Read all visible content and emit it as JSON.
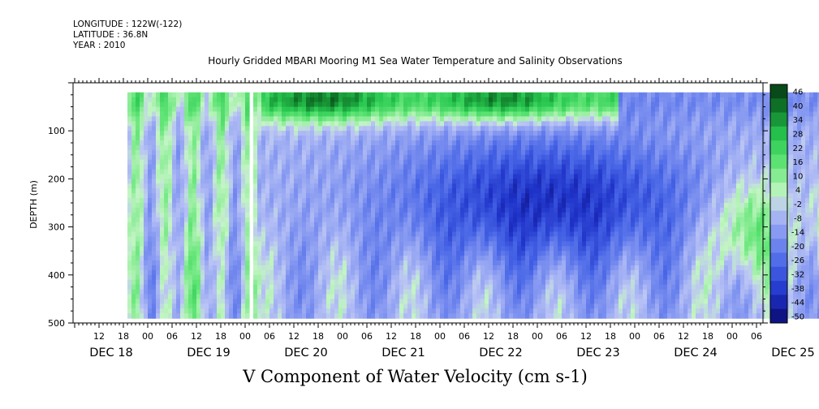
{
  "header": {
    "longitude": "LONGITUDE : 122W(-122)",
    "latitude": "LATITUDE : 36.8N",
    "year": "YEAR : 2010"
  },
  "chart_data": {
    "type": "heatmap",
    "title": "Hourly Gridded MBARI Mooring M1 Sea Water Temperature and Salinity Observations",
    "variable_label": "V Component of Water Velocity (cm s-1)",
    "ylabel": "DEPTH (m)",
    "y_axis": {
      "ylim": [
        500,
        0
      ],
      "inverted": true,
      "ticks": [
        100,
        200,
        300,
        400,
        500
      ]
    },
    "x_axis": {
      "time_hours_range": [
        0,
        174
      ],
      "hour_ticks": [
        {
          "t": 0,
          "label": "12"
        },
        {
          "t": 6,
          "label": "18"
        },
        {
          "t": 12,
          "label": "00"
        },
        {
          "t": 18,
          "label": "06"
        },
        {
          "t": 24,
          "label": "12"
        },
        {
          "t": 30,
          "label": "18"
        },
        {
          "t": 36,
          "label": "00"
        },
        {
          "t": 42,
          "label": "06"
        },
        {
          "t": 48,
          "label": "12"
        },
        {
          "t": 54,
          "label": "18"
        },
        {
          "t": 60,
          "label": "00"
        },
        {
          "t": 66,
          "label": "06"
        },
        {
          "t": 72,
          "label": "12"
        },
        {
          "t": 78,
          "label": "18"
        },
        {
          "t": 84,
          "label": "00"
        },
        {
          "t": 90,
          "label": "06"
        },
        {
          "t": 96,
          "label": "12"
        },
        {
          "t": 102,
          "label": "18"
        },
        {
          "t": 108,
          "label": "00"
        },
        {
          "t": 114,
          "label": "06"
        },
        {
          "t": 120,
          "label": "12"
        },
        {
          "t": 126,
          "label": "18"
        },
        {
          "t": 132,
          "label": "00"
        },
        {
          "t": 138,
          "label": "06"
        },
        {
          "t": 144,
          "label": "12"
        },
        {
          "t": 150,
          "label": "18"
        },
        {
          "t": 156,
          "label": "00"
        },
        {
          "t": 162,
          "label": "06"
        },
        {
          "t": 168,
          "label": "12"
        },
        {
          "t": 174,
          "label": "18"
        },
        {
          "t": 180,
          "label": "00"
        },
        {
          "t": 186,
          "label": "06"
        }
      ],
      "date_labels": [
        {
          "t": 3,
          "label": "DEC 18"
        },
        {
          "t": 27,
          "label": "DEC 19"
        },
        {
          "t": 51,
          "label": "DEC 20"
        },
        {
          "t": 75,
          "label": "DEC 21"
        },
        {
          "t": 99,
          "label": "DEC 22"
        },
        {
          "t": 123,
          "label": "DEC 23"
        },
        {
          "t": 147,
          "label": "DEC 24"
        },
        {
          "t": 171,
          "label": "DEC 25"
        }
      ]
    },
    "data_extent": {
      "t_start": 7,
      "t_end": 188,
      "depth_top": 20,
      "depth_bottom": 485,
      "gap_t": [
        36.3,
        37.5
      ]
    },
    "colorbar": {
      "levels": [
        "46",
        "40",
        "34",
        "28",
        "22",
        "16",
        "10",
        "4",
        "-2",
        "-8",
        "-14",
        "-20",
        "-26",
        "-32",
        "-38",
        "-44",
        "-50"
      ],
      "color_min": -50,
      "color_max": 50
    },
    "field_description": {
      "near_surface_green_band": {
        "t": [
          38,
          128
        ],
        "depth": [
          20,
          100
        ],
        "value": 40
      },
      "blue_core": {
        "t": [
          80,
          150
        ],
        "depth": [
          120,
          360
        ],
        "value": -22
      },
      "green_columns_left": {
        "t": [
          7,
          40
        ],
        "depth": [
          100,
          485
        ],
        "value": 8
      },
      "green_columns_right": {
        "t": [
          150,
          188
        ],
        "depth": [
          200,
          400
        ],
        "value": 12
      }
    }
  }
}
